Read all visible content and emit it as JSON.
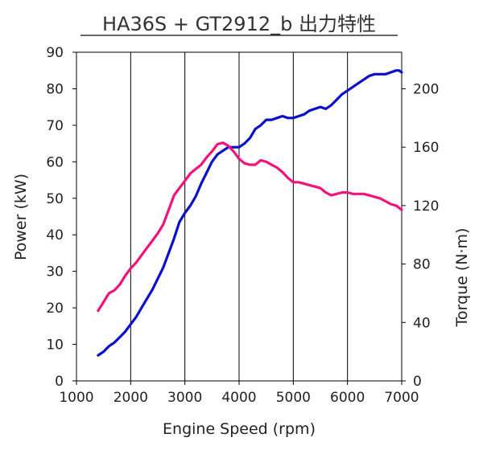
{
  "chart_data": {
    "type": "line",
    "title": "HA36S + GT2912_b  出力特性",
    "xlabel": "Engine Speed (rpm)",
    "ylabel_left": "Power (kW)",
    "ylabel_right": "Torque (N·m)",
    "xlim": [
      1000,
      7000
    ],
    "ylim_left": [
      0,
      90
    ],
    "ylim_right": [
      0,
      225
    ],
    "x_ticks": [
      "1000",
      "2000",
      "3000",
      "4000",
      "5000",
      "6000",
      "7000"
    ],
    "y_left_ticks": [
      "0",
      "10",
      "20",
      "30",
      "40",
      "50",
      "60",
      "70",
      "80",
      "90"
    ],
    "y_right_ticks": [
      "0",
      "40",
      "80",
      "120",
      "160",
      "200"
    ],
    "grid": "vertical",
    "colors": {
      "power": "#0a10c8",
      "torque": "#f0147a"
    },
    "series": [
      {
        "axis": "left",
        "x": [
          1400,
          1500,
          1600,
          1700,
          1800,
          1900,
          2000,
          2100,
          2200,
          2300,
          2400,
          2500,
          2600,
          2700,
          2800,
          2900,
          3000,
          3100,
          3200,
          3300,
          3400,
          3500,
          3600,
          3700,
          3800,
          3900,
          4000,
          4100,
          4200,
          4300,
          4400,
          4500,
          4600,
          4700,
          4800,
          4900,
          5000,
          5100,
          5200,
          5300,
          5400,
          5500,
          5600,
          5700,
          5800,
          5900,
          6000,
          6100,
          6200,
          6300,
          6400,
          6500,
          6600,
          6700,
          6800,
          6900,
          6950,
          7000
        ],
        "values": [
          7,
          8,
          9.5,
          10.5,
          12,
          13.5,
          15.5,
          17.5,
          20,
          22.5,
          25,
          28,
          31,
          35,
          39,
          43.5,
          46,
          48,
          50.5,
          54,
          57,
          60,
          62,
          63,
          64,
          64,
          64,
          65,
          66.5,
          69,
          70,
          71.5,
          71.5,
          72,
          72.5,
          72,
          72,
          72.5,
          73,
          74,
          74.5,
          75,
          74.5,
          75.5,
          77,
          78.5,
          79.5,
          80.5,
          81.5,
          82.5,
          83.5,
          84,
          84,
          84,
          84.5,
          85,
          85,
          84.5
        ]
      },
      {
        "axis": "right",
        "x": [
          1400,
          1500,
          1600,
          1700,
          1800,
          1900,
          2000,
          2100,
          2200,
          2300,
          2400,
          2500,
          2600,
          2700,
          2800,
          2900,
          3000,
          3100,
          3200,
          3300,
          3400,
          3500,
          3600,
          3700,
          3800,
          3900,
          4000,
          4100,
          4200,
          4300,
          4400,
          4500,
          4600,
          4700,
          4800,
          4900,
          5000,
          5100,
          5200,
          5300,
          5400,
          5500,
          5600,
          5700,
          5800,
          5900,
          6000,
          6100,
          6200,
          6300,
          6400,
          6500,
          6600,
          6700,
          6800,
          6900,
          7000
        ],
        "values": [
          48,
          54,
          60,
          62,
          66,
          72,
          77,
          81,
          86,
          91,
          96,
          101,
          107,
          117,
          127,
          132,
          137,
          142,
          145,
          148,
          153,
          157,
          162,
          163,
          161,
          157,
          152,
          149,
          148,
          148,
          151,
          150,
          148,
          146,
          143,
          139,
          136,
          136,
          135,
          134,
          133,
          132,
          129,
          127,
          128,
          129,
          129,
          128,
          128,
          128,
          127,
          126,
          125,
          123,
          121,
          120,
          117
        ]
      }
    ]
  }
}
